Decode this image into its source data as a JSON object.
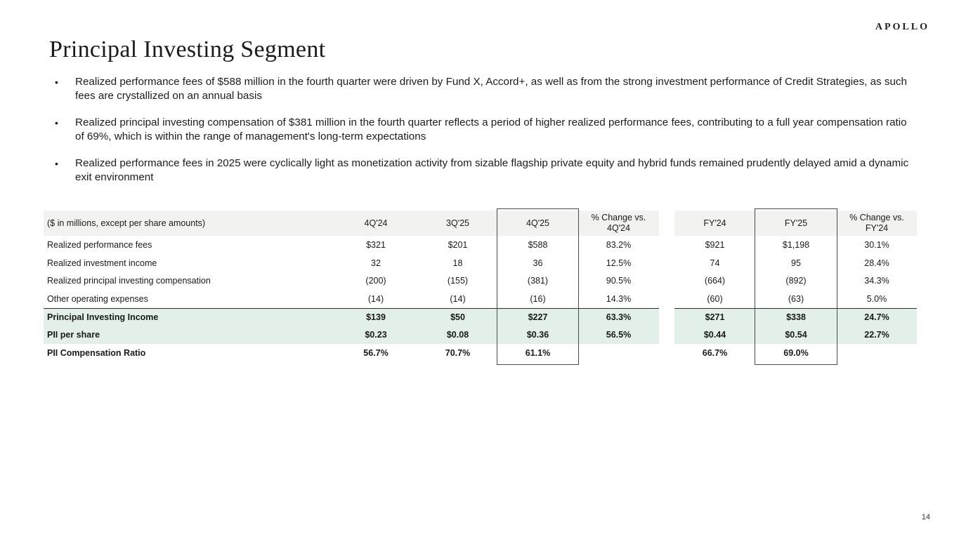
{
  "logo": "APOLLO",
  "title": "Principal Investing Segment",
  "bullets": [
    "Realized performance fees of $588 million in the fourth quarter were driven by Fund X, Accord+, as well as from the strong investment performance of Credit Strategies, as such fees are crystallized on an annual basis",
    "Realized principal investing compensation of $381 million in the fourth quarter reflects a period of higher realized performance fees, contributing to a full year compensation ratio of 69%, which is within the range of management's long-term expectations",
    "Realized performance fees in 2025 were cyclically light as monetization activity from sizable flagship private equity and hybrid funds remained prudently delayed amid a dynamic exit environment"
  ],
  "bullet_marker": "•",
  "colors": {
    "highlight_row_bg": "#e3efe9",
    "header_row_bg": "#f2f2f0",
    "box_border": "#4a4a4a",
    "text": "#1a1a1a"
  },
  "table": {
    "note": "($ in millions, except per share amounts)",
    "columns": [
      {
        "label": "4Q'24"
      },
      {
        "label": "3Q'25"
      },
      {
        "label": "4Q'25",
        "boxed": true
      },
      {
        "label": "% Change vs.",
        "label2": "4Q'24"
      },
      {
        "label": "FY'24"
      },
      {
        "label": "FY'25",
        "boxed": true
      },
      {
        "label": "% Change vs.",
        "label2": "FY'24"
      }
    ],
    "rows": [
      {
        "label": "Realized performance fees",
        "values": [
          "$321",
          "$201",
          "$588",
          "83.2%",
          "$921",
          "$1,198",
          "30.1%"
        ],
        "bold": false,
        "highlight": false,
        "topline": false
      },
      {
        "label": "Realized investment income",
        "values": [
          "32",
          "18",
          "36",
          "12.5%",
          "74",
          "95",
          "28.4%"
        ],
        "bold": false,
        "highlight": false,
        "topline": false
      },
      {
        "label": "Realized principal investing compensation",
        "values": [
          "(200)",
          "(155)",
          "(381)",
          "90.5%",
          "(664)",
          "(892)",
          "34.3%"
        ],
        "bold": false,
        "highlight": false,
        "topline": false
      },
      {
        "label": "Other operating expenses",
        "values": [
          "(14)",
          "(14)",
          "(16)",
          "14.3%",
          "(60)",
          "(63)",
          "5.0%"
        ],
        "bold": false,
        "highlight": false,
        "topline": false
      },
      {
        "label": "Principal Investing Income",
        "values": [
          "$139",
          "$50",
          "$227",
          "63.3%",
          "$271",
          "$338",
          "24.7%"
        ],
        "bold": true,
        "highlight": true,
        "topline": true
      },
      {
        "label": "PII per share",
        "values": [
          "$0.23",
          "$0.08",
          "$0.36",
          "56.5%",
          "$0.44",
          "$0.54",
          "22.7%"
        ],
        "bold": true,
        "highlight": true,
        "topline": false
      },
      {
        "label": "PII Compensation Ratio",
        "values": [
          "56.7%",
          "70.7%",
          "61.1%",
          "",
          "66.7%",
          "69.0%",
          ""
        ],
        "bold": true,
        "highlight": false,
        "topline": false
      }
    ]
  },
  "page_number": "14"
}
